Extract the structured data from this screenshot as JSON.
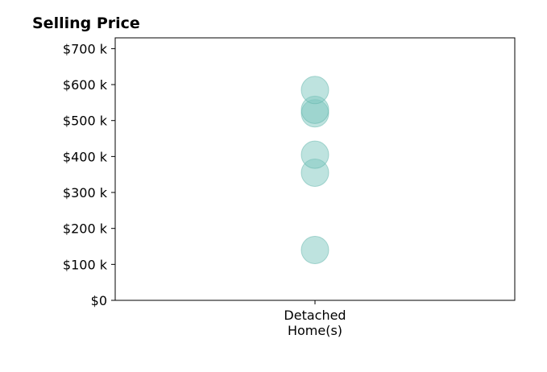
{
  "chart_data": {
    "type": "scatter",
    "title": "Selling Price",
    "xlabel": "",
    "ylabel": "",
    "categories": [
      "Detached",
      "Home(s)"
    ],
    "category_label_lines": [
      "Detached",
      "Home(s)"
    ],
    "y_ticks": [
      0,
      100000,
      200000,
      300000,
      400000,
      500000,
      600000,
      700000
    ],
    "y_tick_labels": [
      "$0",
      "$100 k",
      "$200 k",
      "$300 k",
      "$400 k",
      "$500 k",
      "$600 k",
      "$700 k"
    ],
    "ylim": [
      0,
      730000
    ],
    "grid": false,
    "marker_color": "#7ec8c0",
    "marker_stroke": "#5fb3aa",
    "series": [
      {
        "category": "Detached Home(s)",
        "values": [
          140000,
          355000,
          405000,
          520000,
          530000,
          585000
        ]
      }
    ]
  }
}
